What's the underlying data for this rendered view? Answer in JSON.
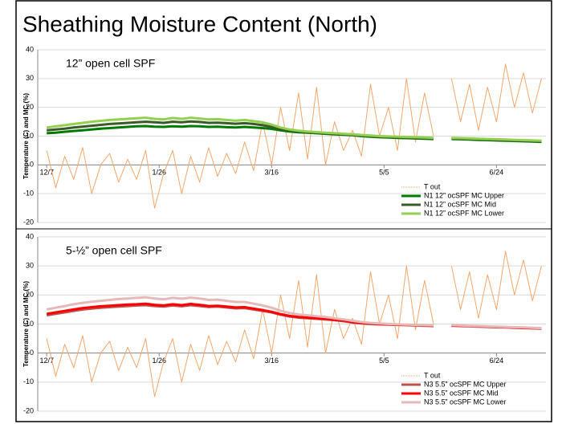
{
  "title": "Sheathing Moisture Content (North)",
  "chart_data": [
    {
      "type": "line",
      "subtitle": "12” open cell SPF",
      "y_label": "Temperature (C) and MC (%)",
      "xlim": [
        -4,
        222
      ],
      "xticks": [
        {
          "value": 0,
          "label": "12/7"
        },
        {
          "value": 50,
          "label": "1/26"
        },
        {
          "value": 100,
          "label": "3/16"
        },
        {
          "value": 150,
          "label": "5/5"
        },
        {
          "value": 200,
          "label": "6/24"
        }
      ],
      "ylim": [
        -20,
        40
      ],
      "yticks": [
        -20,
        -10,
        0,
        10,
        20,
        30,
        40
      ],
      "grid": true,
      "x": [
        0,
        4,
        8,
        12,
        16,
        20,
        24,
        28,
        32,
        36,
        40,
        44,
        48,
        52,
        56,
        60,
        64,
        68,
        72,
        76,
        80,
        84,
        88,
        92,
        96,
        100,
        104,
        108,
        112,
        116,
        120,
        124,
        128,
        132,
        136,
        140,
        144,
        148,
        152,
        156,
        160,
        164,
        168,
        172,
        176,
        180,
        184,
        188,
        192,
        196,
        200,
        204,
        208,
        212,
        216,
        220
      ],
      "series": [
        {
          "name": "T out",
          "color": "#f4a66a",
          "values": [
            5,
            -8,
            3,
            -5,
            6,
            -10,
            0,
            4,
            -6,
            2,
            -5,
            5,
            -15,
            -3,
            5,
            -10,
            3,
            -6,
            6,
            -4,
            4,
            -3,
            8,
            -2,
            15,
            0,
            20,
            5,
            25,
            2,
            27,
            0,
            15,
            5,
            12,
            3,
            28,
            10,
            20,
            5,
            30,
            8,
            25,
            10,
            null,
            30,
            15,
            28,
            12,
            27,
            15,
            35,
            20,
            32,
            18,
            30
          ]
        },
        {
          "name": "N1 12” ocSPF MC Upper",
          "color": "#007a00",
          "values": [
            11,
            11.2,
            11.5,
            11.8,
            12,
            12.3,
            12.6,
            12.8,
            13,
            13.2,
            13.4,
            13.5,
            13.3,
            13.2,
            13.4,
            13.3,
            13.5,
            13.4,
            13.2,
            13.3,
            13.1,
            13,
            13.2,
            13,
            12.8,
            12.5,
            12,
            11.6,
            11.3,
            11.2,
            11,
            10.8,
            10.6,
            10.5,
            10.3,
            10,
            9.8,
            9.6,
            9.5,
            9.4,
            9.3,
            9.2,
            9.1,
            9,
            null,
            9,
            8.9,
            8.8,
            8.7,
            8.6,
            8.5,
            8.4,
            8.3,
            8.2,
            8.1,
            8
          ]
        },
        {
          "name": "N1 12” ocSPF MC Mid",
          "color": "#3a5a28",
          "values": [
            12,
            12.3,
            12.6,
            13,
            13.3,
            13.6,
            13.9,
            14.2,
            14.4,
            14.6,
            14.8,
            15,
            14.8,
            14.6,
            15,
            14.8,
            15.1,
            14.9,
            14.6,
            14.7,
            14.5,
            14.3,
            14.5,
            14.2,
            13.8,
            13.2,
            12.5,
            12,
            11.6,
            11.4,
            11.2,
            11,
            10.8,
            10.6,
            10.4,
            10.2,
            10,
            9.8,
            9.7,
            9.6,
            9.5,
            9.4,
            9.3,
            9.2,
            null,
            9.2,
            9.1,
            9,
            8.9,
            8.8,
            8.7,
            8.6,
            8.5,
            8.4,
            8.3,
            8.2
          ]
        },
        {
          "name": "N1 12” ocSPF MC Lower",
          "color": "#92d050",
          "values": [
            13,
            13.4,
            13.8,
            14.2,
            14.6,
            15,
            15.3,
            15.6,
            15.8,
            16,
            16.2,
            16.4,
            16,
            15.8,
            16.3,
            16,
            16.4,
            16.1,
            15.8,
            15.9,
            15.6,
            15.4,
            15.6,
            15.2,
            14.8,
            14,
            13,
            12.3,
            11.9,
            11.6,
            11.4,
            11.2,
            11,
            10.8,
            10.6,
            10.4,
            10.2,
            10,
            9.9,
            9.8,
            9.7,
            9.6,
            9.5,
            9.4,
            null,
            9.4,
            9.3,
            9.2,
            9.1,
            9,
            8.9,
            8.8,
            8.7,
            8.6,
            8.5,
            8.4
          ]
        }
      ]
    },
    {
      "type": "line",
      "subtitle": "5-½” open cell SPF",
      "y_label": "Temperature (C) and MC (%)",
      "xlim": [
        -4,
        222
      ],
      "xticks": [
        {
          "value": 0,
          "label": "12/7"
        },
        {
          "value": 50,
          "label": "1/26"
        },
        {
          "value": 100,
          "label": "3/16"
        },
        {
          "value": 150,
          "label": "5/5"
        },
        {
          "value": 200,
          "label": "6/24"
        }
      ],
      "ylim": [
        -20,
        40
      ],
      "yticks": [
        -20,
        -10,
        0,
        10,
        20,
        30,
        40
      ],
      "grid": true,
      "x": [
        0,
        4,
        8,
        12,
        16,
        20,
        24,
        28,
        32,
        36,
        40,
        44,
        48,
        52,
        56,
        60,
        64,
        68,
        72,
        76,
        80,
        84,
        88,
        92,
        96,
        100,
        104,
        108,
        112,
        116,
        120,
        124,
        128,
        132,
        136,
        140,
        144,
        148,
        152,
        156,
        160,
        164,
        168,
        172,
        176,
        180,
        184,
        188,
        192,
        196,
        200,
        204,
        208,
        212,
        216,
        220
      ],
      "series": [
        {
          "name": "T out",
          "color": "#f4a66a",
          "values": [
            5,
            -8,
            3,
            -5,
            6,
            -10,
            0,
            4,
            -6,
            2,
            -5,
            5,
            -15,
            -3,
            5,
            -10,
            3,
            -6,
            6,
            -4,
            4,
            -3,
            8,
            -2,
            15,
            0,
            20,
            5,
            25,
            2,
            27,
            0,
            15,
            5,
            12,
            3,
            28,
            10,
            20,
            5,
            30,
            8,
            25,
            10,
            null,
            30,
            15,
            28,
            12,
            27,
            15,
            35,
            20,
            32,
            18,
            30
          ]
        },
        {
          "name": "N3 5.5” ocSPF MC Upper",
          "color": "#c0504d",
          "values": [
            13,
            13.5,
            14,
            14.5,
            15,
            15.3,
            15.6,
            15.8,
            16,
            16.2,
            16.4,
            16.5,
            16.2,
            16,
            16.4,
            16.1,
            16.5,
            16.2,
            15.9,
            16,
            15.7,
            15.4,
            15.5,
            15,
            14.5,
            14,
            13.2,
            12.6,
            12.2,
            12,
            11.8,
            11.6,
            11.3,
            11,
            10.5,
            10.2,
            10,
            9.9,
            9.8,
            9.7,
            9.6,
            9.5,
            9.4,
            9.3,
            null,
            9.4,
            9.3,
            9.2,
            9.1,
            9,
            8.9,
            8.8,
            8.7,
            8.6,
            8.5,
            8.4
          ]
        },
        {
          "name": "N3 5.5” ocSPF MC Mid",
          "color": "#ff0000",
          "values": [
            13.5,
            14,
            14.5,
            15,
            15.5,
            15.8,
            16.1,
            16.3,
            16.5,
            16.7,
            16.8,
            17,
            16.6,
            16.4,
            16.8,
            16.5,
            16.9,
            16.6,
            16.2,
            16.3,
            16,
            15.7,
            15.8,
            15.3,
            14.8,
            14.2,
            13.4,
            12.8,
            12.4,
            12.2,
            12,
            11.8,
            11.5,
            11.2,
            10.7,
            10.4,
            10.2,
            10,
            9.9,
            9.8,
            9.7,
            9.6,
            9.5,
            9.4,
            null,
            9.5,
            9.4,
            9.3,
            9.2,
            9.1,
            9,
            8.9,
            8.8,
            8.7,
            8.6,
            8.5
          ]
        },
        {
          "name": "N3 5.5” ocSPF MC Lower",
          "color": "#e6b9b8",
          "values": [
            15,
            15.6,
            16.2,
            16.8,
            17.3,
            17.7,
            18,
            18.3,
            18.6,
            18.8,
            19,
            19.2,
            18.8,
            18.5,
            19,
            18.7,
            19.1,
            18.8,
            18.3,
            18.4,
            18,
            17.6,
            17.6,
            17,
            16.4,
            15.6,
            14.6,
            13.8,
            13.3,
            13,
            12.7,
            12.4,
            12,
            11.6,
            11.1,
            10.7,
            10.4,
            10.2,
            10,
            9.9,
            9.8,
            9.7,
            9.6,
            9.5,
            null,
            9.6,
            9.5,
            9.4,
            9.3,
            9.2,
            9.1,
            9,
            8.9,
            8.8,
            8.7,
            8.6
          ]
        }
      ]
    }
  ]
}
